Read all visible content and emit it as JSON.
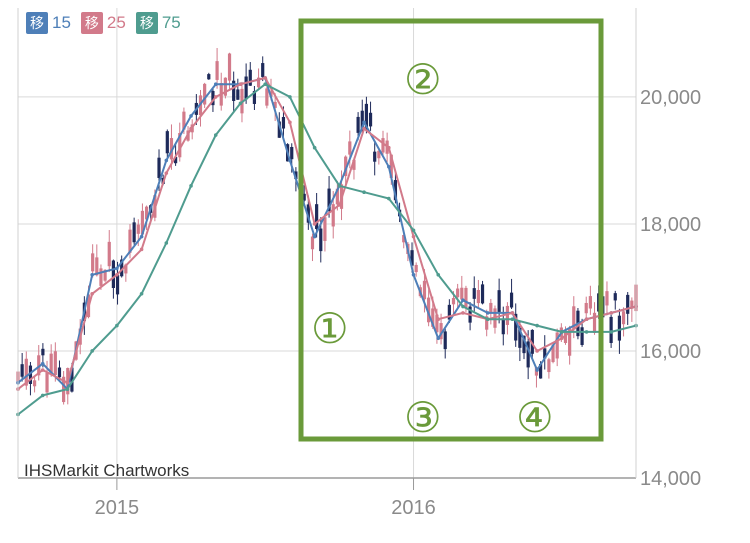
{
  "legend": [
    {
      "label": "移",
      "value": "15",
      "color": "#4e7fb8"
    },
    {
      "label": "移",
      "value": "25",
      "color": "#d27a8a"
    },
    {
      "label": "移",
      "value": "75",
      "color": "#4f9c8f"
    }
  ],
  "watermark": "IHSMarkit Chartworks",
  "annotations": [
    "①",
    "②",
    "③",
    "④"
  ],
  "colors": {
    "up": "#d27a8a",
    "down": "#1e2a5a",
    "grid": "#d9d9d9",
    "frame": "#6a9a3a"
  },
  "chart_data": {
    "type": "line",
    "x_tick_labels": [
      "2015",
      "2016"
    ],
    "y_tick_labels": [
      "14,000",
      "16,000",
      "18,000",
      "20,000"
    ],
    "ylim": [
      14000,
      21400
    ],
    "x": [
      "2014-09",
      "2014-10",
      "2014-11",
      "2014-12",
      "2015-01",
      "2015-02",
      "2015-03",
      "2015-04",
      "2015-05",
      "2015-06",
      "2015-07",
      "2015-08",
      "2015-09",
      "2015-10",
      "2015-11",
      "2015-12",
      "2016-01",
      "2016-02",
      "2016-03",
      "2016-04",
      "2016-05",
      "2016-06",
      "2016-07",
      "2016-08",
      "2016-09",
      "2016-10"
    ],
    "series": [
      {
        "name": "15",
        "color": "#4e7fb8",
        "values": [
          15500,
          15800,
          15400,
          17200,
          17300,
          17800,
          19000,
          19700,
          20200,
          20200,
          20300,
          19000,
          17800,
          18600,
          19600,
          18900,
          17200,
          16200,
          16800,
          16600,
          16600,
          15700,
          16300,
          16500,
          16600,
          16700
        ]
      },
      {
        "name": "25",
        "color": "#d27a8a",
        "values": [
          15400,
          15700,
          15500,
          16900,
          17200,
          17600,
          18800,
          19500,
          20000,
          20200,
          20300,
          19600,
          18000,
          18300,
          19500,
          19200,
          17800,
          16500,
          16600,
          16500,
          16600,
          16000,
          16200,
          16500,
          16600,
          16700
        ]
      },
      {
        "name": "75",
        "color": "#4f9c8f",
        "values": [
          15000,
          15300,
          15400,
          16000,
          16400,
          16900,
          17700,
          18600,
          19400,
          19900,
          20200,
          20000,
          19200,
          18600,
          18500,
          18400,
          17900,
          17200,
          16700,
          16500,
          16500,
          16400,
          16300,
          16300,
          16300,
          16400
        ]
      }
    ]
  }
}
